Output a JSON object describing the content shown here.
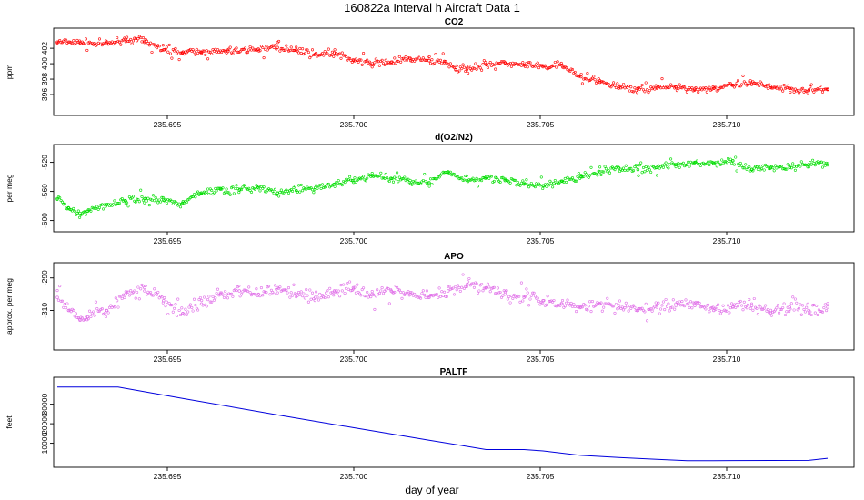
{
  "main_title": "160822a   Interval h Aircraft Data 1",
  "x_axis_label": "day of year",
  "chart_data": [
    {
      "type": "scatter",
      "title": "CO2",
      "ylabel": "ppm",
      "color": "#ff0000",
      "xlim": [
        235.6922,
        235.7125
      ],
      "ylim": [
        394.0,
        403.9
      ],
      "x_ticks": [
        "235.695",
        "235.700",
        "235.705",
        "235.710"
      ],
      "y_ticks": [
        "396",
        "398",
        "400",
        "402"
      ],
      "series": [
        {
          "x": [
            235.6922,
            235.6928,
            235.6935,
            235.694,
            235.6945,
            235.695,
            235.6955,
            235.696,
            235.6967,
            235.6975,
            235.698,
            235.6985,
            235.699,
            235.6995,
            235.7,
            235.7005,
            235.701,
            235.7015,
            235.702,
            235.7024,
            235.7027,
            235.703,
            235.7035,
            235.704,
            235.7045,
            235.705,
            235.7055,
            235.706,
            235.7065,
            235.707,
            235.7075,
            235.708,
            235.7085,
            235.709,
            235.7095,
            235.71,
            235.7105,
            235.711,
            235.7115,
            235.712,
            235.7125
          ],
          "y": [
            402.8,
            402.7,
            402.6,
            403.2,
            402.9,
            401.8,
            401.4,
            401.5,
            401.6,
            401.9,
            402.1,
            401.8,
            401.2,
            401.4,
            400.5,
            400.0,
            400.2,
            400.7,
            400.4,
            400.3,
            399.2,
            399.4,
            399.9,
            400.1,
            399.8,
            399.6,
            399.8,
            398.3,
            397.6,
            397.0,
            396.8,
            396.9,
            397.0,
            396.7,
            396.8,
            397.2,
            397.4,
            397.1,
            396.8,
            396.5,
            396.7
          ]
        }
      ]
    },
    {
      "type": "scatter",
      "title": "d(O2/N2)",
      "ylabel": "per meg",
      "color": "#00dd00",
      "xlim": [
        235.6922,
        235.7125
      ],
      "ylim": [
        -608,
        -503
      ],
      "x_ticks": [
        "235.695",
        "235.700",
        "235.705",
        "235.710"
      ],
      "y_ticks": [
        "-600",
        "-560",
        "-520"
      ],
      "series": [
        {
          "x": [
            235.6922,
            235.6925,
            235.6928,
            235.693,
            235.6935,
            235.694,
            235.6945,
            235.695,
            235.6955,
            235.696,
            235.6965,
            235.697,
            235.6975,
            235.698,
            235.6985,
            235.699,
            235.6995,
            235.7,
            235.7005,
            235.701,
            235.7015,
            235.702,
            235.7025,
            235.703,
            235.7035,
            235.704,
            235.7045,
            235.705,
            235.7055,
            235.706,
            235.7065,
            235.707,
            235.7075,
            235.708,
            235.7085,
            235.709,
            235.7095,
            235.71,
            235.7105,
            235.711,
            235.7115,
            235.712,
            235.7125
          ],
          "y": [
            -570,
            -583,
            -590,
            -587,
            -578,
            -573,
            -570,
            -572,
            -576,
            -562,
            -556,
            -558,
            -555,
            -562,
            -559,
            -555,
            -550,
            -545,
            -538,
            -542,
            -545,
            -548,
            -533,
            -545,
            -540,
            -545,
            -550,
            -552,
            -546,
            -540,
            -533,
            -528,
            -530,
            -527,
            -523,
            -520,
            -522,
            -518,
            -530,
            -527,
            -527,
            -523,
            -522
          ]
        }
      ]
    },
    {
      "type": "scatter",
      "title": "APO",
      "ylabel": "approx. per meg",
      "color": "#e070e8",
      "xlim": [
        235.6922,
        235.7125
      ],
      "ylim": [
        -331,
        -284
      ],
      "x_ticks": [
        "235.695",
        "235.700",
        "235.705",
        "235.710"
      ],
      "y_ticks": [
        "-310",
        "-290"
      ],
      "series": [
        {
          "x": [
            235.6922,
            235.6925,
            235.6928,
            235.693,
            235.6935,
            235.694,
            235.6945,
            235.695,
            235.6955,
            235.696,
            235.6965,
            235.697,
            235.6975,
            235.698,
            235.6985,
            235.699,
            235.6995,
            235.7,
            235.7005,
            235.701,
            235.7015,
            235.702,
            235.7025,
            235.703,
            235.7035,
            235.704,
            235.7045,
            235.705,
            235.7055,
            235.706,
            235.7065,
            235.707,
            235.7075,
            235.708,
            235.7085,
            235.709,
            235.7095,
            235.71,
            235.7105,
            235.711,
            235.7115,
            235.712,
            235.7125
          ],
          "y": [
            -302,
            -310,
            -316,
            -314,
            -310,
            -300,
            -296,
            -304,
            -312,
            -306,
            -300,
            -298,
            -300,
            -296,
            -300,
            -302,
            -298,
            -296,
            -300,
            -298,
            -300,
            -302,
            -298,
            -294,
            -296,
            -300,
            -302,
            -304,
            -306,
            -308,
            -306,
            -307,
            -310,
            -308,
            -306,
            -307,
            -310,
            -308,
            -307,
            -310,
            -308,
            -310,
            -308
          ]
        }
      ]
    },
    {
      "type": "line",
      "title": "PALTF",
      "ylabel": "feet",
      "color": "#0000dd",
      "xlim": [
        235.6922,
        235.7125
      ],
      "ylim": [
        500,
        41000
      ],
      "x_ticks": [
        "235.695",
        "235.700",
        "235.705",
        "235.710"
      ],
      "y_ticks": [
        "10000",
        "20000",
        "30000"
      ],
      "series": [
        {
          "x": [
            235.6922,
            235.6938,
            235.6955,
            235.698,
            235.7,
            235.702,
            235.7035,
            235.704,
            235.7045,
            235.705,
            235.706,
            235.707,
            235.708,
            235.7088,
            235.7095,
            235.71,
            235.711,
            235.712,
            235.7125
          ],
          "y": [
            38800,
            38800,
            33000,
            24500,
            18000,
            11600,
            6800,
            6800,
            6800,
            6100,
            3800,
            2700,
            1800,
            1100,
            1100,
            1150,
            1200,
            1250,
            2300
          ]
        }
      ]
    }
  ]
}
